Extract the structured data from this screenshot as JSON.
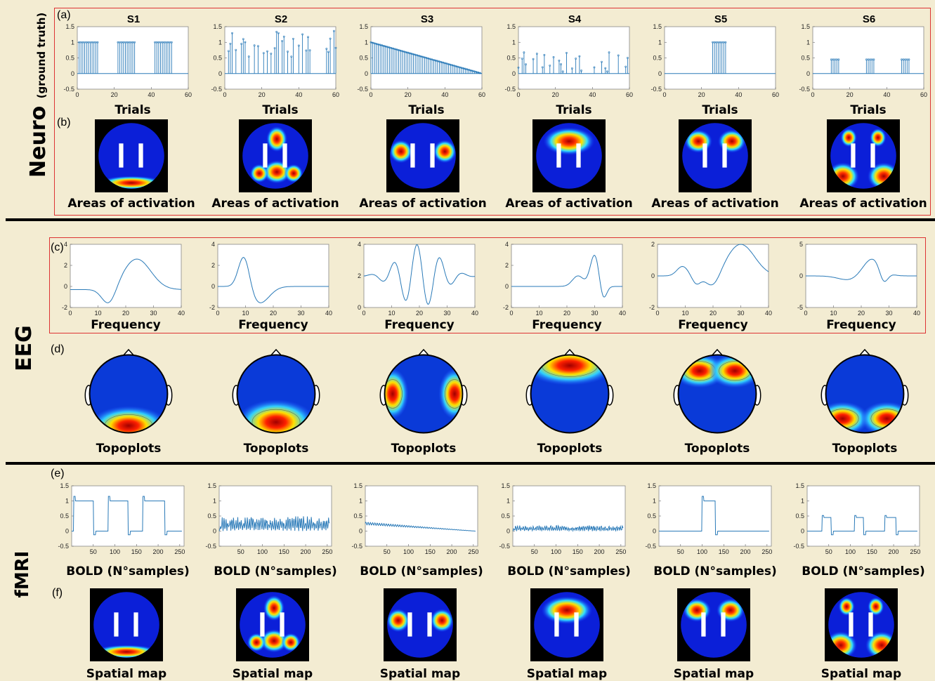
{
  "sections": {
    "neuro": {
      "label": "Neuro",
      "sublabel": "(ground truth)"
    },
    "eeg": {
      "label": "EEG"
    },
    "fmri": {
      "label": "fMRI"
    }
  },
  "panel_letters": {
    "a": "(a)",
    "b": "(b)",
    "c": "(c)",
    "d": "(d)",
    "e": "(e)",
    "f": "(f)"
  },
  "source_titles": [
    "S1",
    "S2",
    "S3",
    "S4",
    "S5",
    "S6"
  ],
  "axis_labels": {
    "trials": "Trials",
    "areas": "Areas of activation",
    "frequency": "Frequency",
    "topoplots": "Topoplots",
    "bold": "BOLD (N°samples)",
    "spatial": "Spatial map"
  },
  "colors": {
    "line": "#2a7ab8",
    "frame": "#d33333",
    "background": "#f3ecd2"
  },
  "chart_data": [
    {
      "type": "line",
      "panel": "(a)",
      "description_axis": "Trials",
      "xlim": [
        0,
        60
      ],
      "ylim": [
        -0.5,
        1.5
      ],
      "xticks": [
        0,
        20,
        40,
        60
      ],
      "yticks": [
        -0.5,
        0,
        0.5,
        1,
        1.5
      ],
      "series": [
        {
          "title": "S1",
          "kind": "blocks",
          "blocks": [
            [
              1,
              11
            ],
            [
              22,
              31
            ],
            [
              42,
              51
            ]
          ],
          "amp": 1
        },
        {
          "title": "S2",
          "kind": "random",
          "seed": 7,
          "max": 1.4,
          "min": 0.5
        },
        {
          "title": "S3",
          "kind": "ramp",
          "start": 1,
          "end": 0
        },
        {
          "title": "S4",
          "kind": "random",
          "seed": 3,
          "max": 0.7,
          "min": 0.05
        },
        {
          "title": "S5",
          "kind": "blocks",
          "blocks": [
            [
              26,
              33
            ]
          ],
          "amp": 1
        },
        {
          "title": "S6",
          "kind": "blocks",
          "blocks": [
            [
              10,
              14
            ],
            [
              29,
              33
            ],
            [
              48,
              52
            ]
          ],
          "amp": 0.45
        }
      ]
    },
    {
      "type": "line",
      "panel": "(c)",
      "xlim": [
        0,
        40
      ],
      "xticks": [
        0,
        10,
        20,
        30,
        40
      ],
      "series": [
        {
          "ylim": [
            -2,
            4
          ],
          "yticks": [
            -2,
            0,
            2,
            4
          ],
          "kind": "s1"
        },
        {
          "ylim": [
            -2,
            4
          ],
          "yticks": [
            -2,
            0,
            2,
            4
          ],
          "kind": "s2"
        },
        {
          "ylim": [
            0,
            4
          ],
          "yticks": [
            0,
            2,
            4
          ],
          "kind": "s3"
        },
        {
          "ylim": [
            -2,
            4
          ],
          "yticks": [
            -2,
            0,
            2,
            4
          ],
          "kind": "s4"
        },
        {
          "ylim": [
            -2,
            2
          ],
          "yticks": [
            -2,
            0,
            2
          ],
          "kind": "s5"
        },
        {
          "ylim": [
            -5,
            5
          ],
          "yticks": [
            -5,
            0,
            5
          ],
          "kind": "s6"
        }
      ]
    },
    {
      "type": "line",
      "panel": "(e)",
      "xlim": [
        0,
        260
      ],
      "xticks": [
        50,
        100,
        150,
        200,
        250
      ],
      "ylim": [
        -0.5,
        1.5
      ],
      "yticks": [
        -0.5,
        0,
        0.5,
        1,
        1.5
      ],
      "series": [
        {
          "kind": "blocks",
          "blocks": [
            [
              5,
              50
            ],
            [
              85,
              130
            ],
            [
              165,
              215
            ]
          ],
          "amp": 1
        },
        {
          "kind": "noise",
          "seed": 7,
          "amp": 0.5
        },
        {
          "kind": "ramp",
          "start": 0.3,
          "end": 0
        },
        {
          "kind": "noise",
          "seed": 3,
          "amp": 0.2
        },
        {
          "kind": "blocks",
          "blocks": [
            [
              100,
              130
            ]
          ],
          "amp": 1
        },
        {
          "kind": "blocks",
          "blocks": [
            [
              35,
              55
            ],
            [
              110,
              130
            ],
            [
              180,
              205
            ]
          ],
          "amp": 0.45
        }
      ]
    }
  ]
}
